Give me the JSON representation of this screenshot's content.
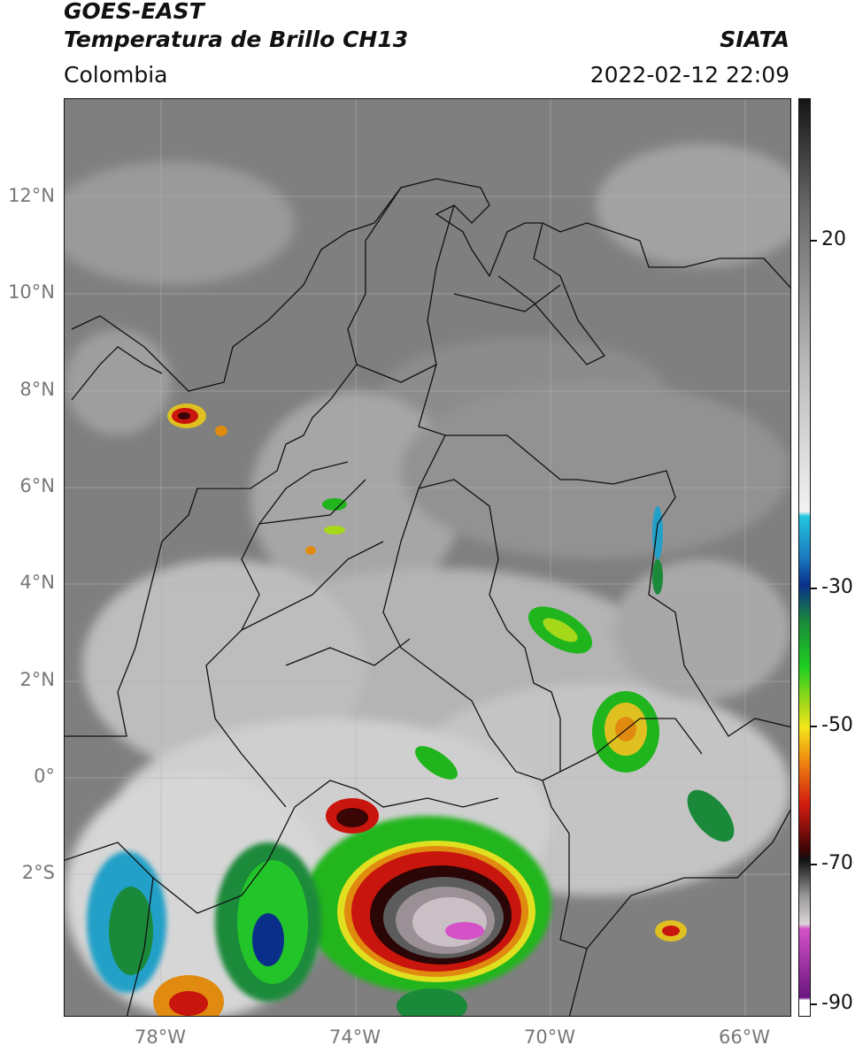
{
  "header": {
    "satellite": "GOES-EAST",
    "product": "Temperatura de Brillo CH13",
    "brand": "SIATA",
    "region": "Colombia",
    "timestamp": "2022-02-12 22:09"
  },
  "map": {
    "lat_labels": [
      "12°N",
      "10°N",
      "8°N",
      "6°N",
      "4°N",
      "2°N",
      "0°",
      "2°S"
    ],
    "lon_labels": [
      "78°W",
      "74°W",
      "70°W",
      "66°W"
    ]
  },
  "colorbar": {
    "tick_labels": [
      "20",
      "-30",
      "-50",
      "-70",
      "-90"
    ],
    "colors": {
      "warm_gray_top": "#151515",
      "cyan": "#22c6e0",
      "blue": "#0a2f8a",
      "green": "#1fcf1f",
      "yellow": "#f3e81a",
      "orange": "#f08c10",
      "red": "#d21a10",
      "dark_red": "#3a0505",
      "magenta": "#d451c8",
      "purple": "#6a1680"
    }
  }
}
